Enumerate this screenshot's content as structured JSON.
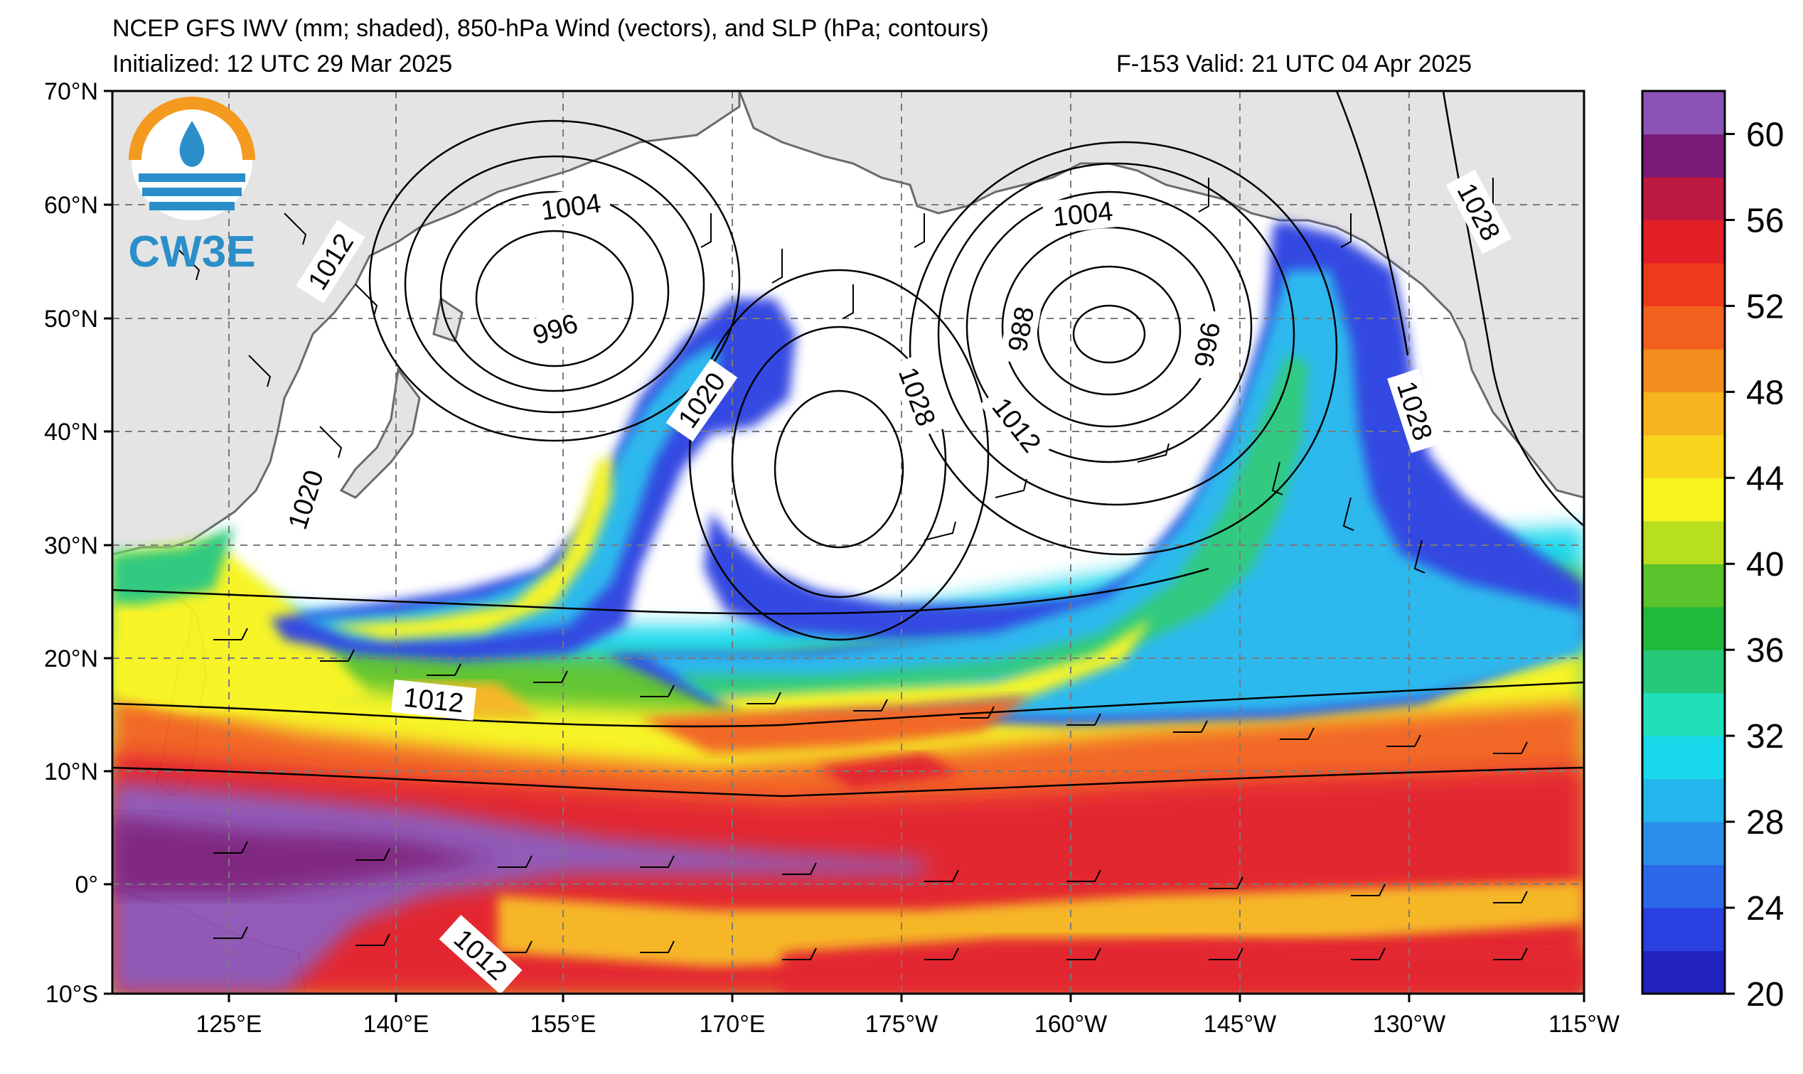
{
  "header": {
    "title": "NCEP GFS IWV (mm; shaded), 850-hPa Wind (vectors), and SLP (hPa; contours)",
    "initialized": "Initialized: 12 UTC 29 Mar 2025",
    "valid": "F-153  Valid: 21 UTC 04 Apr 2025"
  },
  "logo": {
    "text": "CW3E"
  },
  "axes": {
    "lat_ticks": [
      "70°N",
      "60°N",
      "50°N",
      "40°N",
      "30°N",
      "20°N",
      "10°N",
      "0°",
      "10°S"
    ],
    "lon_ticks": [
      "125°E",
      "140°E",
      "155°E",
      "170°E",
      "175°W",
      "160°W",
      "145°W",
      "130°W",
      "115°W"
    ]
  },
  "colorbar": {
    "labels": [
      "60",
      "56",
      "52",
      "48",
      "44",
      "40",
      "36",
      "32",
      "28",
      "24",
      "20"
    ],
    "min": 20,
    "max": 62,
    "colors": [
      "#2222bf",
      "#2a3fe0",
      "#2e66e8",
      "#2a8fe8",
      "#22b6ec",
      "#18d8ec",
      "#20e0b8",
      "#26c87a",
      "#1fb93c",
      "#5ac22a",
      "#b8df1e",
      "#f6f41c",
      "#f8d41c",
      "#f6b41e",
      "#f48c20",
      "#f2601e",
      "#ee3a1c",
      "#e21e26",
      "#bc1a40",
      "#7a1c7a",
      "#8c52b4"
    ]
  },
  "contour_labels": [
    "1004",
    "1004",
    "996",
    "1012",
    "1020",
    "1020",
    "1028",
    "1012",
    "988",
    "996",
    "1028",
    "1028",
    "1012",
    "1012"
  ],
  "icons": [
    "cw3e-logo-icon"
  ]
}
